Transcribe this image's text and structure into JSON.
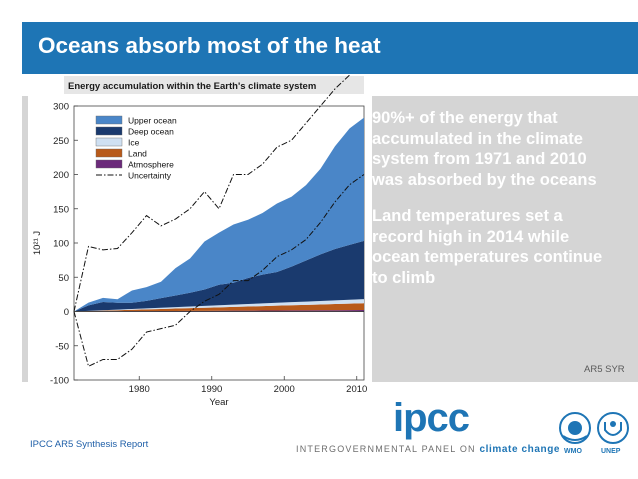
{
  "slide": {
    "title": "Oceans absorb most of the heat",
    "bullets": [
      "90%+ of the energy that accumulated in the climate system from 1971 and 2010 was absorbed by the oceans",
      "Land temperatures set a record high in 2014 while ocean temperatures continue to climb"
    ],
    "reference": "AR5 SYR",
    "footer": "IPCC AR5 Synthesis Report"
  },
  "branding": {
    "wordmark": "ipcc",
    "panel_prefix": "INTERGOVERNMENTAL PANEL ON",
    "panel_highlight": "climate change",
    "logo_left": "WMO",
    "logo_right": "UNEP"
  },
  "colors": {
    "title_bar": "#1e75b5",
    "panel": "#d5d5d5",
    "upper_ocean": "#4a86c8",
    "deep_ocean": "#1a3a6e",
    "ice": "#cfe0f2",
    "land": "#b85a1a",
    "atmosphere": "#6b2a7a"
  },
  "chart_data": {
    "type": "area",
    "title": "Energy accumulation within the Earth's climate system",
    "xlabel": "Year",
    "ylabel": "10²¹ J",
    "xlim": [
      1971,
      2011
    ],
    "ylim": [
      -100,
      300
    ],
    "xticks": [
      1980,
      1990,
      2000,
      2010
    ],
    "yticks": [
      -100,
      -50,
      0,
      50,
      100,
      150,
      200,
      250,
      300
    ],
    "legend": [
      "Upper ocean",
      "Deep ocean",
      "Ice",
      "Land",
      "Atmosphere",
      "Uncertainty"
    ],
    "x": [
      1971,
      1973,
      1975,
      1977,
      1979,
      1981,
      1983,
      1985,
      1987,
      1989,
      1991,
      1993,
      1995,
      1997,
      1999,
      2001,
      2003,
      2005,
      2007,
      2009,
      2011
    ],
    "series": [
      {
        "name": "Atmosphere",
        "values": [
          0,
          0.2,
          0.3,
          0.4,
          0.5,
          0.6,
          0.7,
          0.8,
          0.9,
          1.0,
          1.1,
          1.2,
          1.3,
          1.4,
          1.5,
          1.6,
          1.7,
          1.8,
          1.9,
          2.0,
          2.1
        ]
      },
      {
        "name": "Land",
        "values": [
          0,
          0.5,
          1,
          1.5,
          2,
          2.5,
          3,
          3.5,
          4,
          4.5,
          5,
          5.5,
          6,
          6.5,
          7,
          7.5,
          8,
          8.5,
          9,
          9.5,
          10
        ]
      },
      {
        "name": "Ice",
        "values": [
          0,
          0.3,
          0.6,
          0.9,
          1.2,
          1.5,
          1.8,
          2.1,
          2.4,
          2.7,
          3,
          3.3,
          3.6,
          3.9,
          4.2,
          4.5,
          4.8,
          5.1,
          5.4,
          5.7,
          6
        ]
      },
      {
        "name": "Deep ocean",
        "values": [
          0,
          8,
          12,
          10,
          9,
          11,
          14,
          17,
          20,
          24,
          30,
          32,
          38,
          42,
          45,
          52,
          60,
          68,
          75,
          80,
          85
        ]
      },
      {
        "name": "Upper ocean",
        "values": [
          0,
          4,
          6,
          5,
          18,
          20,
          24,
          40,
          50,
          70,
          76,
          85,
          85,
          90,
          100,
          102,
          110,
          125,
          150,
          170,
          180
        ]
      }
    ],
    "uncertainty_upper": [
      0,
      95,
      90,
      92,
      115,
      140,
      125,
      135,
      150,
      175,
      150,
      200,
      200,
      215,
      240,
      250,
      275,
      300,
      325,
      345,
      380
    ],
    "uncertainty_lower": [
      0,
      -80,
      -70,
      -70,
      -55,
      -30,
      -25,
      -20,
      0,
      15,
      25,
      45,
      45,
      60,
      80,
      90,
      105,
      130,
      160,
      185,
      200
    ],
    "stack_order": [
      "Atmosphere",
      "Land",
      "Ice",
      "Deep ocean",
      "Upper ocean"
    ]
  }
}
